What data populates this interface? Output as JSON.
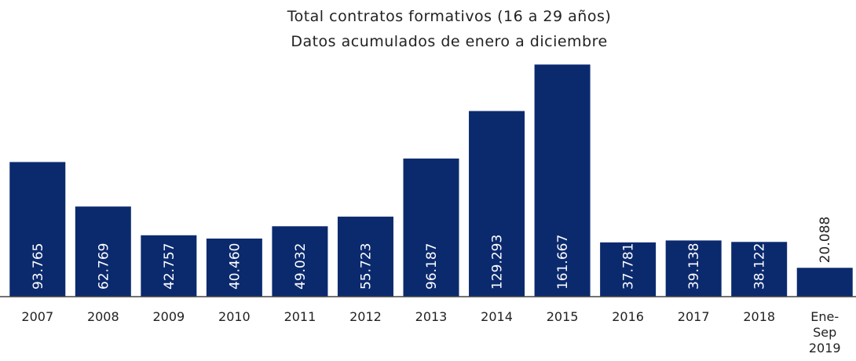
{
  "chart_data": {
    "type": "bar",
    "title": "Total contratos formativos  (16 a 29 años)",
    "subtitle": "Datos acumulados de enero a diciembre",
    "categories": [
      "2007",
      "2008",
      "2009",
      "2010",
      "2011",
      "2012",
      "2013",
      "2014",
      "2015",
      "2016",
      "2017",
      "2018",
      "Ene-Sep 2019"
    ],
    "values": [
      93765,
      62769,
      42757,
      40460,
      49032,
      55723,
      96187,
      129293,
      161667,
      37781,
      39138,
      38122,
      20088
    ],
    "value_labels": [
      "93.765",
      "62.769",
      "42.757",
      "40.460",
      "49.032",
      "55.723",
      "96.187",
      "129.293",
      "161.667",
      "37.781",
      "39.138",
      "38.122",
      "20.088"
    ],
    "color": "#0b2a6e",
    "ylim": [
      0,
      170000
    ]
  }
}
